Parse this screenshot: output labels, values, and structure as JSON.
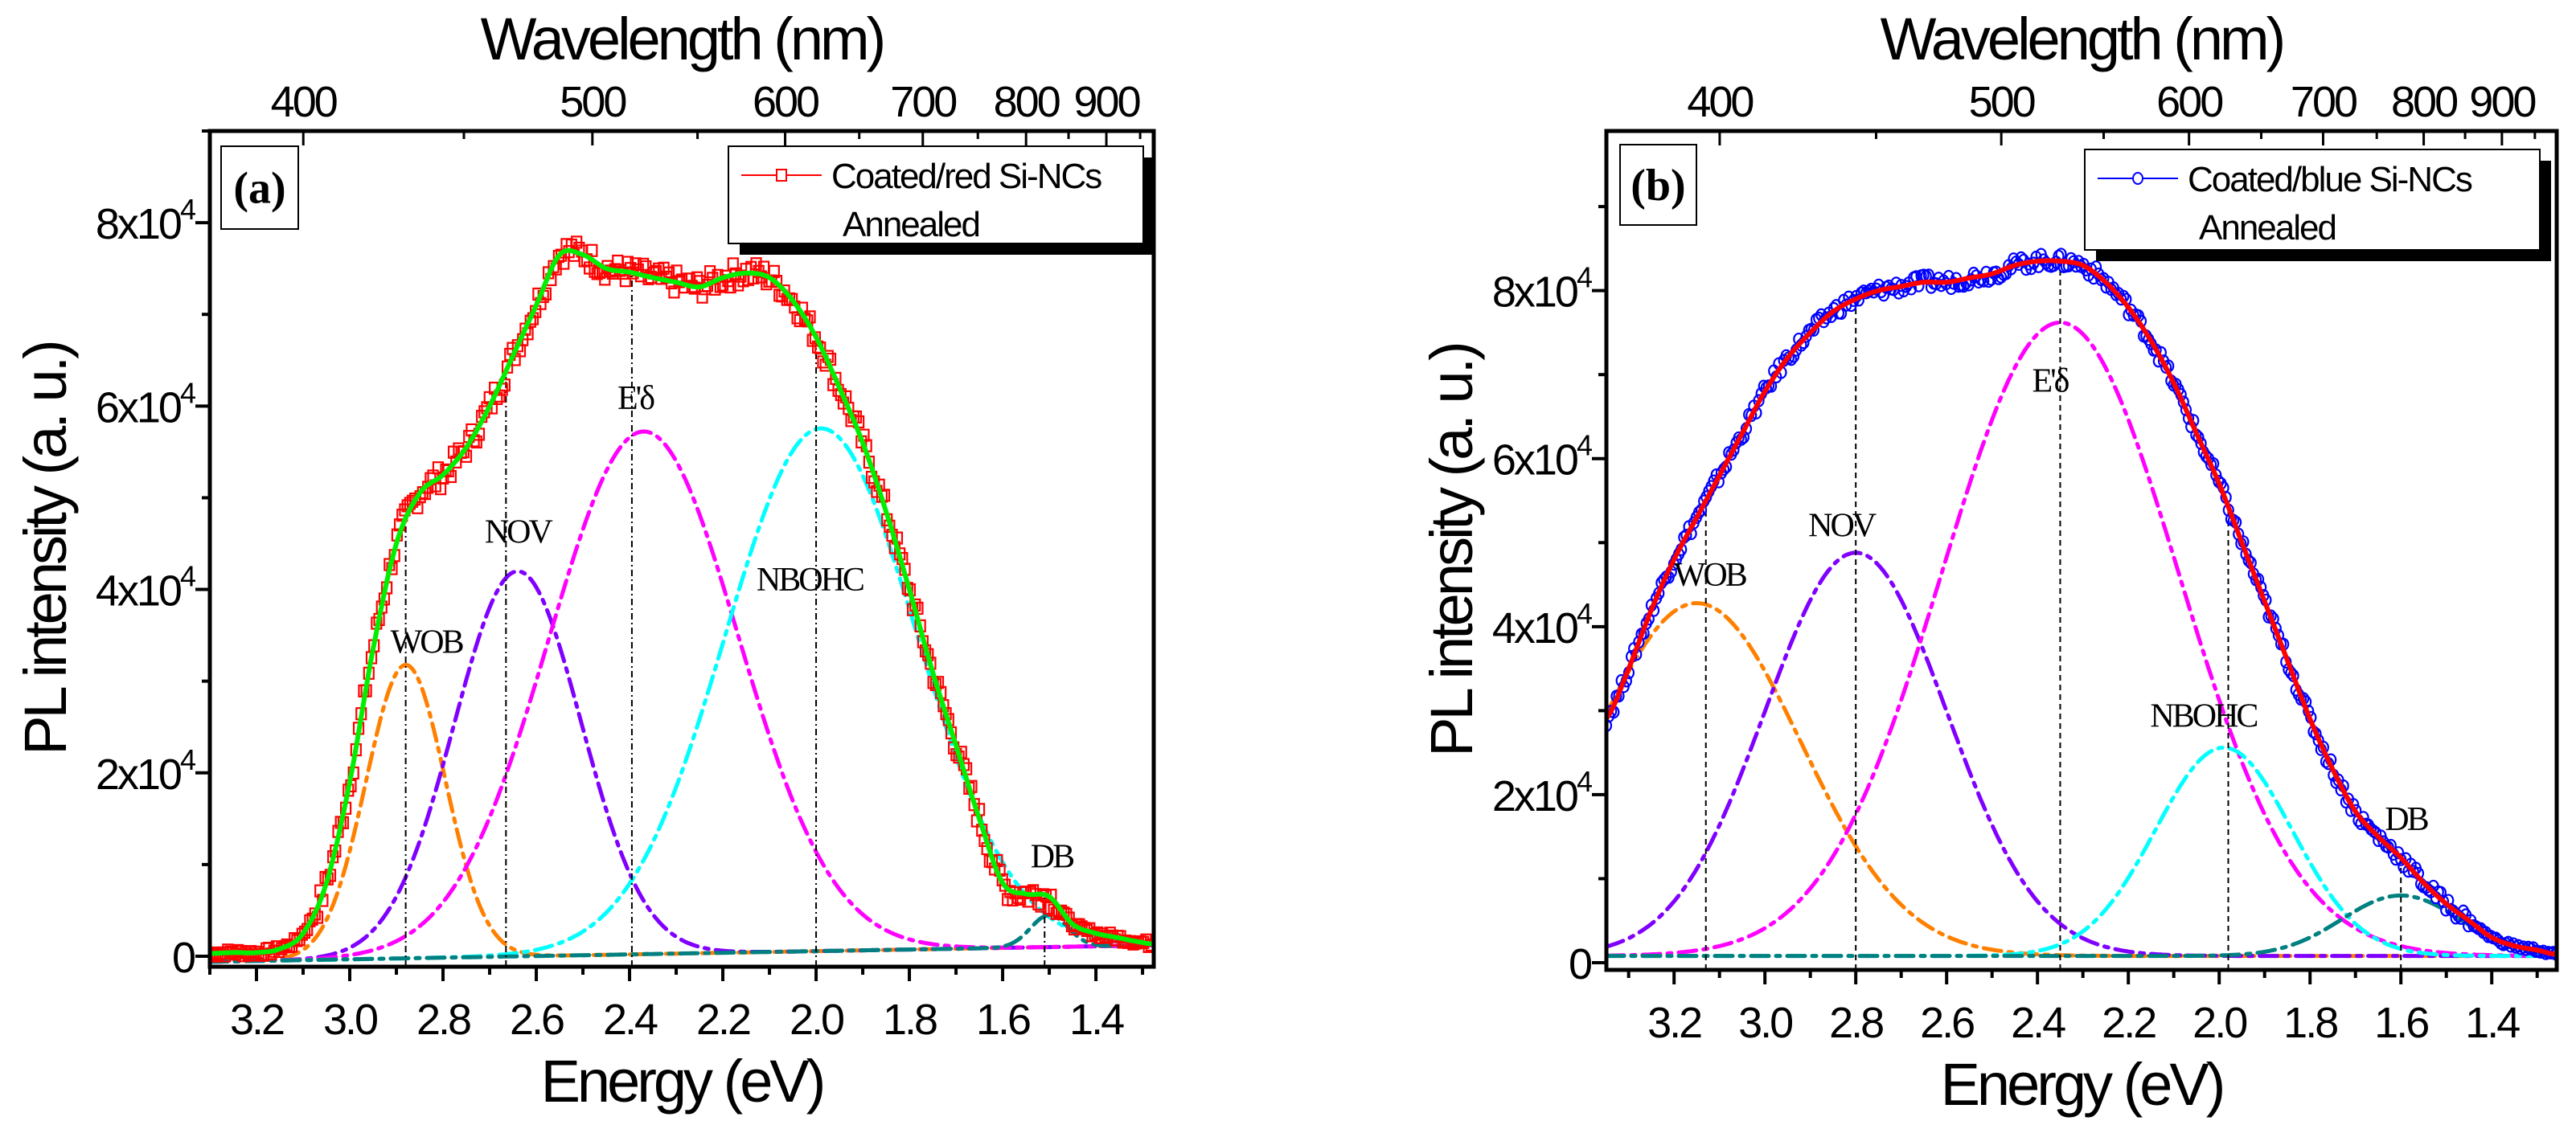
{
  "chart_data": [
    {
      "type": "line",
      "panel": "(a)",
      "xlabel": "Energy (eV)",
      "x2label": "Wavelength (nm)",
      "ylabel": "PL intensity (a. u.)",
      "xlim": [
        3.3,
        1.276
      ],
      "ylim": [
        -1140,
        90000
      ],
      "xticks": [
        "3.2",
        "3.0",
        "2.8",
        "2.6",
        "2.4",
        "2.2",
        "2.0",
        "1.8",
        "1.6",
        "1.4"
      ],
      "x2ticks": [
        "400",
        "500",
        "600",
        "700",
        "800",
        "900"
      ],
      "yticks": [
        {
          "value": 0,
          "base": "0",
          "exp": ""
        },
        {
          "value": 20000,
          "base": "2x10",
          "exp": "4"
        },
        {
          "value": 40000,
          "base": "4x10",
          "exp": "4"
        },
        {
          "value": 60000,
          "base": "6x10",
          "exp": "4"
        },
        {
          "value": 80000,
          "base": "8x10",
          "exp": "4"
        }
      ],
      "legend": {
        "position": "top-right",
        "entries": [
          "Coated/red Si-NCs",
          "Annealed"
        ]
      },
      "measured": {
        "name": "Coated/red Si-NCs",
        "marker": "square",
        "color": "#ff0000",
        "x": [
          3.3,
          3.25,
          3.2,
          3.15,
          3.1,
          3.05,
          3.0,
          2.95,
          2.9,
          2.85,
          2.8,
          2.75,
          2.7,
          2.65,
          2.6,
          2.55,
          2.5,
          2.45,
          2.4,
          2.35,
          2.3,
          2.25,
          2.2,
          2.15,
          2.1,
          2.05,
          2.0,
          1.95,
          1.9,
          1.85,
          1.8,
          1.75,
          1.7,
          1.65,
          1.6,
          1.55,
          1.5,
          1.45,
          1.4,
          1.35,
          1.3,
          1.27
        ],
        "y": [
          300,
          400,
          400,
          800,
          2500,
          8000,
          19000,
          33500,
          45000,
          50500,
          52500,
          55500,
          60000,
          65500,
          71000,
          76500,
          76500,
          75000,
          74600,
          74000,
          73500,
          73000,
          74000,
          74500,
          74000,
          71500,
          67500,
          62000,
          56000,
          48500,
          40000,
          31000,
          23000,
          15000,
          8000,
          6800,
          6500,
          3500,
          2500,
          2000,
          1500,
          1300
        ]
      },
      "fit": {
        "name": "Fit",
        "color": "#00ee00"
      },
      "baseline": [
        -600,
        1200
      ],
      "components": [
        {
          "name": "WOB",
          "center": 2.88,
          "amplitude": 32000,
          "sigma": 0.085,
          "color": "#ff8000",
          "line_at": 2.88,
          "label_x": 2.836,
          "label_y": 34300
        },
        {
          "name": "NOV",
          "center": 2.64,
          "amplitude": 42000,
          "sigma": 0.136,
          "color": "#8000ff",
          "line_at": 2.665,
          "label_x": 2.64,
          "label_y": 46300
        },
        {
          "name": "E'δ",
          "center": 2.37,
          "amplitude": 57000,
          "sigma": 0.203,
          "color": "#ff00ff",
          "line_at": 2.395,
          "label_x": 2.388,
          "label_y": 60900
        },
        {
          "name": "NBOHC",
          "center": 1.99,
          "amplitude": 57000,
          "sigma": 0.205,
          "color": "#00ffff",
          "line_at": 2.0,
          "label_x": 2.014,
          "label_y": 41100
        },
        {
          "name": "DB",
          "center": 1.5,
          "amplitude": 3500,
          "sigma": 0.04,
          "color": "#008080",
          "line_at": 1.51,
          "label_x": 1.495,
          "label_y": 10900
        }
      ]
    },
    {
      "type": "line",
      "panel": "(b)",
      "xlabel": "Energy (eV)",
      "x2label": "Wavelength (nm)",
      "ylabel": "PL intensity (a. u.)",
      "xlim": [
        3.349,
        1.257
      ],
      "ylim": [
        -860,
        99000
      ],
      "xticks": [
        "3.2",
        "3.0",
        "2.8",
        "2.6",
        "2.4",
        "2.2",
        "2.0",
        "1.8",
        "1.6",
        "1.4"
      ],
      "x2ticks": [
        "400",
        "500",
        "600",
        "700",
        "800",
        "900"
      ],
      "yticks": [
        {
          "value": 0,
          "base": "0",
          "exp": ""
        },
        {
          "value": 20000,
          "base": "2x10",
          "exp": "4"
        },
        {
          "value": 40000,
          "base": "4x10",
          "exp": "4"
        },
        {
          "value": 60000,
          "base": "6x10",
          "exp": "4"
        },
        {
          "value": 80000,
          "base": "8x10",
          "exp": "4"
        }
      ],
      "legend": {
        "position": "top-right",
        "entries": [
          "Coated/blue Si-NCs",
          "Annealed"
        ]
      },
      "measured": {
        "name": "Coated/blue Si-NCs",
        "marker": "circle",
        "color": "#0000ff",
        "x": [
          3.35,
          3.3,
          3.25,
          3.2,
          3.15,
          3.1,
          3.05,
          3.0,
          2.95,
          2.9,
          2.85,
          2.8,
          2.75,
          2.7,
          2.65,
          2.6,
          2.55,
          2.5,
          2.45,
          2.4,
          2.35,
          2.3,
          2.25,
          2.2,
          2.15,
          2.1,
          2.05,
          2.0,
          1.95,
          1.9,
          1.85,
          1.8,
          1.75,
          1.7,
          1.65,
          1.6,
          1.55,
          1.5,
          1.45,
          1.4,
          1.35,
          1.3,
          1.26
        ],
        "y": [
          29000,
          35000,
          42000,
          48000,
          53000,
          58000,
          63000,
          68000,
          72000,
          75000,
          77500,
          79000,
          80000,
          80500,
          81000,
          81000,
          81500,
          82000,
          83000,
          83500,
          83500,
          83000,
          81000,
          78000,
          74000,
          69000,
          63000,
          57000,
          50000,
          43000,
          36000,
          29000,
          23000,
          18000,
          15000,
          12500,
          9500,
          7000,
          5000,
          3000,
          2000,
          1500,
          1000
        ]
      },
      "fit": {
        "name": "Fit",
        "color": "#ff0000"
      },
      "baseline": [
        800,
        800
      ],
      "components": [
        {
          "name": "WOB",
          "center": 3.15,
          "amplitude": 42000,
          "sigma": 0.229,
          "color": "#ff8000",
          "line_at": 3.13,
          "label_x": 3.122,
          "label_y": 46200
        },
        {
          "name": "NOV",
          "center": 2.8,
          "amplitude": 48000,
          "sigma": 0.2,
          "color": "#8000ff",
          "line_at": 2.8,
          "label_x": 2.832,
          "label_y": 52100
        },
        {
          "name": "E'δ",
          "center": 2.35,
          "amplitude": 75400,
          "sigma": 0.26,
          "color": "#ff00ff",
          "line_at": 2.35,
          "label_x": 2.373,
          "label_y": 69300
        },
        {
          "name": "NBOHC",
          "center": 1.99,
          "amplitude": 24800,
          "sigma": 0.15,
          "color": "#00ffff",
          "line_at": 1.98,
          "label_x": 2.035,
          "label_y": 29400
        },
        {
          "name": "DB",
          "center": 1.6,
          "amplitude": 7200,
          "sigma": 0.13,
          "color": "#008080",
          "line_at": 1.6,
          "label_x": 1.589,
          "label_y": 17100
        }
      ]
    }
  ]
}
